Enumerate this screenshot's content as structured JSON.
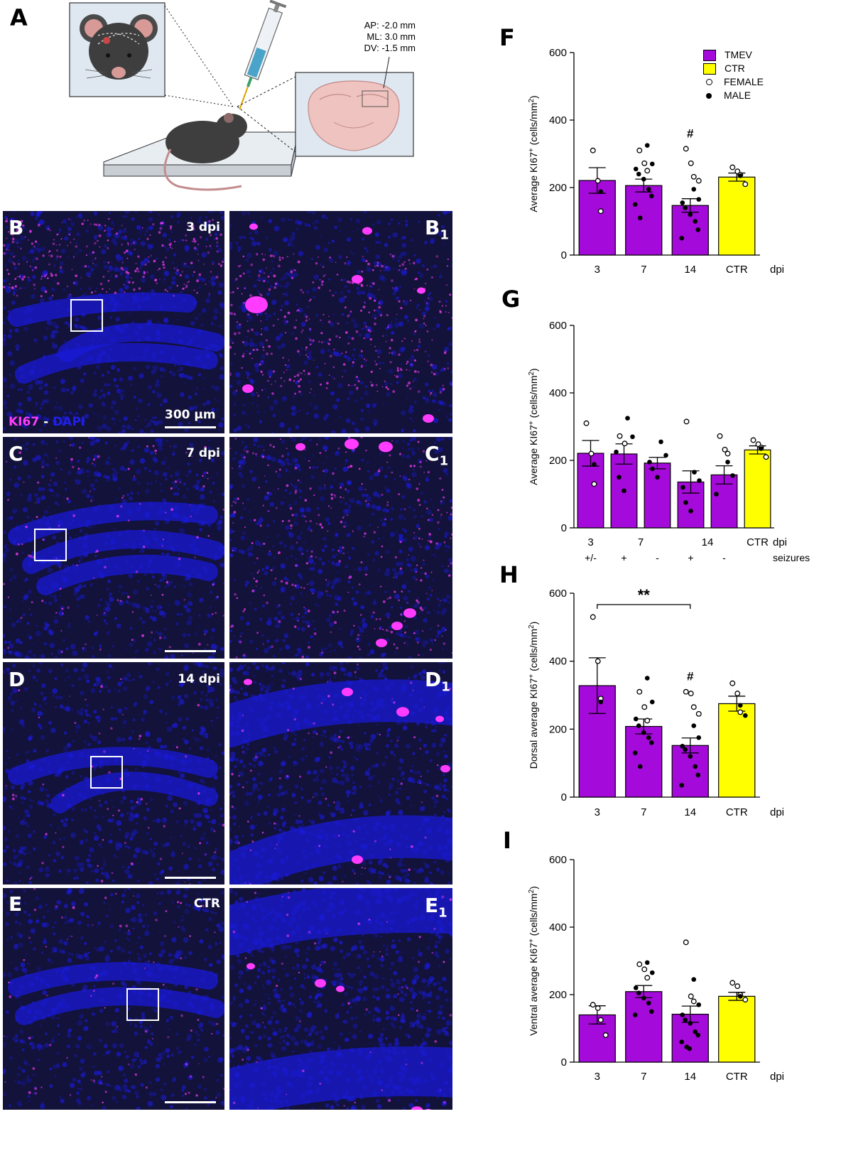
{
  "panel_letters": {
    "a": "A",
    "f": "F",
    "g": "G",
    "h": "H",
    "i": "I"
  },
  "schematic": {
    "coords": [
      "AP: -2.0 mm",
      "ML: 3.0 mm",
      "DV: -1.5 mm"
    ]
  },
  "micrographs": [
    {
      "letter": "B",
      "sub_letter": "B",
      "sub_index": "1",
      "condition": "3 dpi",
      "stain_a": "KI67",
      "stain_sep": " - ",
      "stain_b": "DAPI",
      "scale_label": "300 µm"
    },
    {
      "letter": "C",
      "sub_letter": "C",
      "sub_index": "1",
      "condition": "7 dpi"
    },
    {
      "letter": "D",
      "sub_letter": "D",
      "sub_index": "1",
      "condition": "14 dpi"
    },
    {
      "letter": "E",
      "sub_letter": "E",
      "sub_index": "1",
      "condition": "CTR"
    }
  ],
  "colors": {
    "tmev": "#a40ad9",
    "ctr": "#ffff00",
    "ki67": "#ff3cff",
    "dapi": "#1a1ad8",
    "background_tissue": "#12123a"
  },
  "legend": {
    "items": [
      {
        "label": "TMEV",
        "kind": "swatch",
        "color": "#a40ad9"
      },
      {
        "label": "CTR",
        "kind": "swatch",
        "color": "#ffff00"
      },
      {
        "label": "FEMALE",
        "kind": "open-dot"
      },
      {
        "label": "MALE",
        "kind": "filled-dot"
      }
    ]
  },
  "chart_data": [
    {
      "panel": "F",
      "type": "bar",
      "ylabel": "Average KI67⁺ (cells/mm²)",
      "ylabel_parts": [
        "Average KI67",
        "+",
        " (cells/mm",
        "2",
        ")"
      ],
      "xlabel": "dpi",
      "categories": [
        "3",
        "7",
        "14",
        "CTR"
      ],
      "ylim": [
        0,
        600
      ],
      "yticks": [
        0,
        200,
        400,
        600
      ],
      "values": [
        221,
        206,
        147,
        231
      ],
      "sem": [
        38,
        19,
        20,
        12
      ],
      "colors": [
        "#a40ad9",
        "#a40ad9",
        "#a40ad9",
        "#ffff00"
      ],
      "annotations": [
        {
          "category": "14",
          "text": "#"
        }
      ],
      "points": [
        {
          "open": [
            310,
            220,
            130
          ],
          "filled": [
            188
          ]
        },
        {
          "open": [
            310,
            272,
            250
          ],
          "filled": [
            325,
            270,
            255,
            240,
            225,
            195,
            175,
            150,
            110
          ]
        },
        {
          "open": [
            315,
            272,
            232,
            220
          ],
          "filled": [
            195,
            165,
            155,
            140,
            120,
            100,
            75,
            50
          ]
        },
        {
          "open": [
            260,
            248,
            238,
            210
          ],
          "filled": [
            235
          ]
        }
      ]
    },
    {
      "panel": "G",
      "type": "bar",
      "ylabel": "Average KI67⁺ (cells/mm²)",
      "ylabel_parts": [
        "Average KI67",
        "+",
        " (cells/mm",
        "2",
        ")"
      ],
      "xlabel": "dpi",
      "row2_label": "seizures",
      "categories": [
        "3",
        "7",
        "",
        "14",
        "",
        "CTR"
      ],
      "group_labels": [
        {
          "text": "3",
          "bars": [
            0
          ]
        },
        {
          "text": "7",
          "bars": [
            1,
            2
          ]
        },
        {
          "text": "14",
          "bars": [
            3,
            4
          ]
        },
        {
          "text": "CTR",
          "bars": [
            5
          ]
        }
      ],
      "seizures": [
        "+/-",
        "+",
        "-",
        "+",
        "-",
        ""
      ],
      "ylim": [
        0,
        600
      ],
      "yticks": [
        0,
        200,
        400,
        600
      ],
      "values": [
        221,
        219,
        192,
        136,
        157,
        231
      ],
      "sem": [
        38,
        30,
        17,
        33,
        27,
        12
      ],
      "colors": [
        "#a40ad9",
        "#a40ad9",
        "#a40ad9",
        "#a40ad9",
        "#a40ad9",
        "#ffff00"
      ],
      "points": [
        {
          "open": [
            310,
            220,
            130
          ],
          "filled": [
            188
          ]
        },
        {
          "open": [
            272,
            250
          ],
          "filled": [
            325,
            270,
            225,
            150,
            110
          ]
        },
        {
          "open": [],
          "filled": [
            255,
            215,
            195,
            175,
            150
          ]
        },
        {
          "open": [
            315
          ],
          "filled": [
            165,
            140,
            120,
            75,
            50
          ]
        },
        {
          "open": [
            272,
            232,
            220
          ],
          "filled": [
            195,
            155,
            100
          ]
        },
        {
          "open": [
            260,
            248,
            238,
            210
          ],
          "filled": [
            235
          ]
        }
      ]
    },
    {
      "panel": "H",
      "type": "bar",
      "ylabel": "Dorsal average KI67⁺ (cells/mm²)",
      "ylabel_parts": [
        "Dorsal average KI67",
        "+",
        " (cells/mm",
        "2",
        ")"
      ],
      "xlabel": "dpi",
      "categories": [
        "3",
        "7",
        "14",
        "CTR"
      ],
      "ylim": [
        0,
        600
      ],
      "yticks": [
        0,
        200,
        400,
        600
      ],
      "values": [
        328,
        208,
        152,
        275
      ],
      "sem": [
        82,
        22,
        22,
        22
      ],
      "colors": [
        "#a40ad9",
        "#a40ad9",
        "#a40ad9",
        "#ffff00"
      ],
      "annotations": [
        {
          "category": "14",
          "text": "#"
        }
      ],
      "significance": {
        "from": "3",
        "to": "14",
        "text": "**"
      },
      "points": [
        {
          "open": [
            530,
            400,
            290
          ],
          "filled": [
            280
          ]
        },
        {
          "open": [
            310,
            265,
            225
          ],
          "filled": [
            350,
            280,
            230,
            210,
            190,
            175,
            160,
            130,
            90
          ]
        },
        {
          "open": [
            310,
            305,
            265,
            245
          ],
          "filled": [
            210,
            175,
            150,
            140,
            120,
            90,
            65,
            35
          ]
        },
        {
          "open": [
            335,
            305,
            250
          ],
          "filled": [
            270,
            240
          ]
        }
      ]
    },
    {
      "panel": "I",
      "type": "bar",
      "ylabel": "Ventral average KI67⁺ (cells/mm²)",
      "ylabel_parts": [
        "Ventral average KI67",
        "+",
        " (cells/mm",
        "2",
        ")"
      ],
      "xlabel": "dpi",
      "categories": [
        "3",
        "7",
        "14",
        "CTR"
      ],
      "ylim": [
        0,
        600
      ],
      "yticks": [
        0,
        200,
        400,
        600
      ],
      "values": [
        140,
        209,
        142,
        195
      ],
      "sem": [
        27,
        18,
        24,
        12
      ],
      "colors": [
        "#a40ad9",
        "#a40ad9",
        "#a40ad9",
        "#ffff00"
      ],
      "points": [
        {
          "open": [
            170,
            160,
            125,
            80
          ],
          "filled": []
        },
        {
          "open": [
            290,
            275,
            250
          ],
          "filled": [
            295,
            265,
            220,
            205,
            190,
            175,
            150,
            140
          ]
        },
        {
          "open": [
            355,
            195,
            180
          ],
          "filled": [
            245,
            170,
            140,
            125,
            115,
            90,
            80,
            60,
            45,
            40
          ]
        },
        {
          "open": [
            235,
            225,
            200,
            185
          ],
          "filled": [
            195
          ]
        }
      ]
    }
  ]
}
